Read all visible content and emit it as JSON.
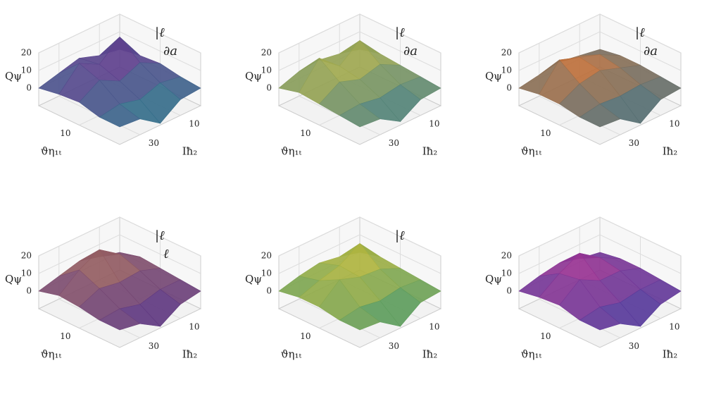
{
  "chart_data": [
    {
      "type": "surface",
      "xlabel": "Iħ₂",
      "ylabel": "ϑη₁ₜ",
      "zlabel": "Qψ",
      "annotations": [
        "|ℓ",
        "∂a"
      ],
      "x": [
        0,
        10,
        20,
        30,
        40
      ],
      "y": [
        0,
        5,
        10,
        15,
        20
      ],
      "xlim": [
        0,
        40
      ],
      "ylim": [
        0,
        20
      ],
      "zlim": [
        -10,
        20
      ],
      "xticks": [
        10,
        30
      ],
      "yticks": [
        10
      ],
      "zticks": [
        0,
        10,
        20
      ],
      "colors": [
        "#1f8a8a",
        "#7a1f8f"
      ],
      "z": [
        [
          0,
          2,
          6,
          3,
          0
        ],
        [
          2,
          18,
          8,
          14,
          2
        ],
        [
          3,
          9,
          4,
          10,
          3
        ],
        [
          1,
          3,
          -1,
          2,
          0
        ],
        [
          0,
          -1,
          -9,
          -1,
          0
        ]
      ]
    },
    {
      "type": "surface",
      "xlabel": "Iħ₂",
      "ylabel": "ϑη₁ₜ",
      "zlabel": "Qψ",
      "annotations": [
        "|ℓ",
        "∂a"
      ],
      "x": [
        0,
        10,
        20,
        30,
        40
      ],
      "y": [
        0,
        5,
        10,
        15,
        20
      ],
      "xlim": [
        0,
        40
      ],
      "ylim": [
        0,
        20
      ],
      "zlim": [
        -10,
        20
      ],
      "xticks": [
        10,
        30
      ],
      "yticks": [
        10
      ],
      "zticks": [
        0,
        10,
        20
      ],
      "colors": [
        "#2a6f8f",
        "#d4c233"
      ],
      "z": [
        [
          0,
          3,
          5,
          4,
          0
        ],
        [
          3,
          16,
          7,
          17,
          3
        ],
        [
          2,
          8,
          5,
          9,
          2
        ],
        [
          1,
          2,
          0,
          2,
          1
        ],
        [
          0,
          -1,
          -8,
          -1,
          0
        ]
      ]
    },
    {
      "type": "surface",
      "xlabel": "Iħ₂",
      "ylabel": "ϑη₁ₜ",
      "zlabel": "Qψ",
      "annotations": [
        "|ℓ",
        "∂a"
      ],
      "x": [
        0,
        10,
        20,
        30,
        40
      ],
      "y": [
        0,
        5,
        10,
        15,
        20
      ],
      "xlim": [
        0,
        40
      ],
      "ylim": [
        0,
        20
      ],
      "zlim": [
        -10,
        20
      ],
      "xticks": [
        10,
        30
      ],
      "yticks": [
        10
      ],
      "zticks": [
        0,
        10,
        20
      ],
      "colors": [
        "#1f6f8f",
        "#e0702a"
      ],
      "z": [
        [
          0,
          2,
          4,
          2,
          0
        ],
        [
          2,
          8,
          12,
          16,
          2
        ],
        [
          2,
          6,
          10,
          8,
          2
        ],
        [
          1,
          2,
          1,
          2,
          0
        ],
        [
          0,
          -1,
          -9,
          -1,
          0
        ]
      ]
    },
    {
      "type": "surface",
      "xlabel": "Iħ₂",
      "ylabel": "ϑη₁ₜ",
      "zlabel": "Qψ",
      "annotations": [
        "|ℓ",
        "ℓ"
      ],
      "x": [
        0,
        10,
        20,
        30,
        40
      ],
      "y": [
        0,
        5,
        10,
        15,
        20
      ],
      "xlim": [
        0,
        40
      ],
      "ylim": [
        0,
        20
      ],
      "zlim": [
        -10,
        20
      ],
      "xticks": [
        10,
        30
      ],
      "yticks": [
        10
      ],
      "zticks": [
        0,
        10,
        20
      ],
      "colors": [
        "#4a2a8f",
        "#b07050"
      ],
      "z": [
        [
          0,
          3,
          6,
          3,
          0
        ],
        [
          3,
          10,
          18,
          12,
          3
        ],
        [
          2,
          6,
          5,
          7,
          2
        ],
        [
          1,
          1,
          -2,
          1,
          0
        ],
        [
          0,
          -2,
          -9,
          -2,
          0
        ]
      ]
    },
    {
      "type": "surface",
      "xlabel": "Iħ₂",
      "ylabel": "ϑη₁ₜ",
      "zlabel": "Qψ",
      "annotations": [
        "|ℓ"
      ],
      "x": [
        0,
        10,
        20,
        30,
        40
      ],
      "y": [
        0,
        5,
        10,
        15,
        20
      ],
      "xlim": [
        0,
        40
      ],
      "ylim": [
        0,
        20
      ],
      "zlim": [
        -10,
        20
      ],
      "xticks": [
        10,
        30
      ],
      "yticks": [
        10
      ],
      "zticks": [
        0,
        10,
        20
      ],
      "colors": [
        "#2f8f6f",
        "#d8c030"
      ],
      "z": [
        [
          0,
          3,
          5,
          3,
          0
        ],
        [
          3,
          16,
          9,
          6,
          2
        ],
        [
          2,
          7,
          8,
          12,
          2
        ],
        [
          1,
          2,
          0,
          2,
          0
        ],
        [
          0,
          -1,
          -9,
          -1,
          0
        ]
      ]
    },
    {
      "type": "surface",
      "xlabel": "Iħ₂",
      "ylabel": "ϑη₁ₜ",
      "zlabel": "Qψ",
      "annotations": [],
      "x": [
        0,
        10,
        20,
        30,
        40
      ],
      "y": [
        0,
        5,
        10,
        15,
        20
      ],
      "xlim": [
        0,
        40
      ],
      "ylim": [
        0,
        20
      ],
      "zlim": [
        -10,
        20
      ],
      "xticks": [
        10,
        30
      ],
      "yticks": [
        10
      ],
      "zticks": [
        0,
        10,
        20
      ],
      "colors": [
        "#3a3f9f",
        "#b0308f"
      ],
      "z": [
        [
          0,
          2,
          5,
          3,
          0
        ],
        [
          2,
          8,
          16,
          10,
          2
        ],
        [
          2,
          6,
          6,
          12,
          3
        ],
        [
          1,
          1,
          -1,
          2,
          0
        ],
        [
          0,
          -2,
          -9,
          -2,
          0
        ]
      ]
    }
  ]
}
